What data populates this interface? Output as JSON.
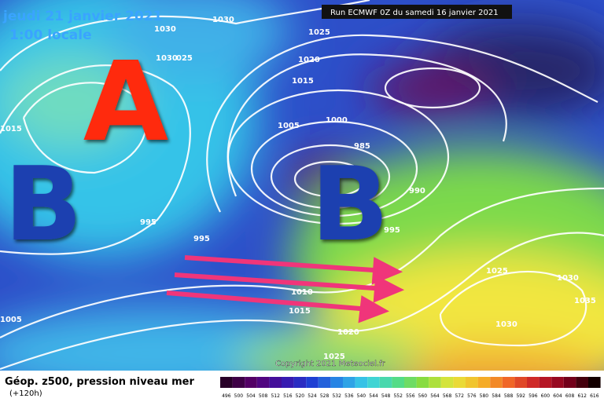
{
  "header": {
    "date": "jeudi 21 janvier 2021",
    "time": "1:00 locale",
    "run": "Run ECMWF 0Z du samedi 16 janvier 2021"
  },
  "centers": [
    "A",
    "B",
    "B"
  ],
  "isobar_labels": [
    "1030",
    "1030",
    "1025",
    "1030",
    "025",
    "1020",
    "1015",
    "1005",
    "1000",
    "1015",
    "985",
    "990",
    "995",
    "995",
    "995",
    "1010",
    "1015",
    "1020",
    "1025",
    "1025",
    "1030",
    "1035",
    "1030",
    "1005"
  ],
  "copyright": "Copyright 2021 Meteociel.fr",
  "footer": {
    "title": "Géop. z500, pression niveau mer",
    "lead": "(+120h)"
  },
  "scale": {
    "labels": [
      "496",
      "500",
      "504",
      "508",
      "512",
      "516",
      "520",
      "524",
      "528",
      "532",
      "536",
      "540",
      "544",
      "548",
      "552",
      "556",
      "560",
      "564",
      "568",
      "572",
      "576",
      "580",
      "584",
      "588",
      "592",
      "596",
      "600",
      "604",
      "608",
      "612",
      "616"
    ]
  }
}
